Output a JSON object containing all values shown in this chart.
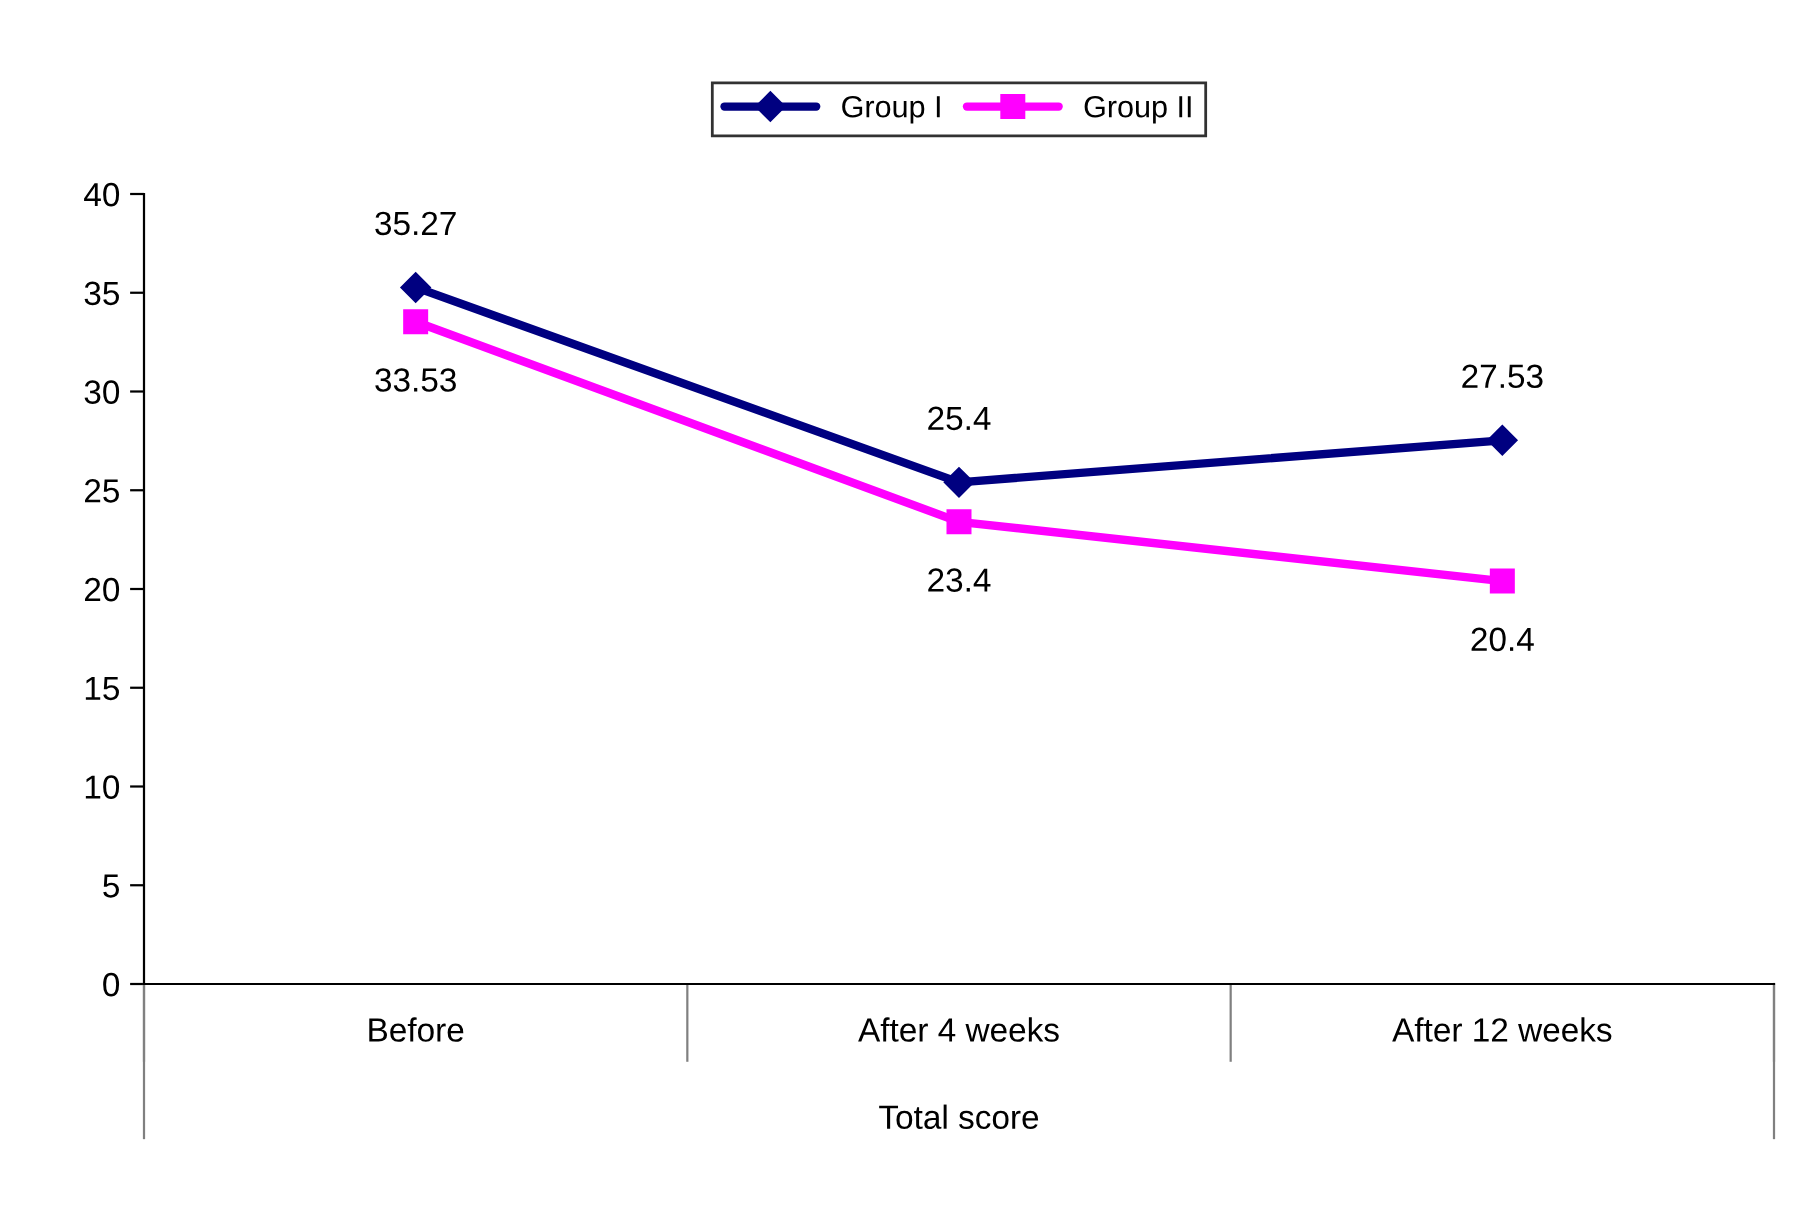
{
  "chart_data": {
    "type": "line",
    "xlabel": "Total score",
    "categories": [
      "Before",
      "After 4 weeks",
      "After 12 weeks"
    ],
    "series": [
      {
        "name": "Group I",
        "color": "#000080",
        "values": [
          35.27,
          25.4,
          27.53
        ],
        "marker": "diamond"
      },
      {
        "name": "Group II",
        "color": "#ff00ff",
        "values": [
          33.53,
          23.4,
          20.4
        ],
        "marker": "square"
      }
    ],
    "ylim": [
      0,
      40
    ],
    "yticks": [
      0,
      5,
      10,
      15,
      20,
      25,
      30,
      35,
      40
    ],
    "data_labels": true,
    "legend": "top",
    "grid": false,
    "line_style": "solid"
  }
}
